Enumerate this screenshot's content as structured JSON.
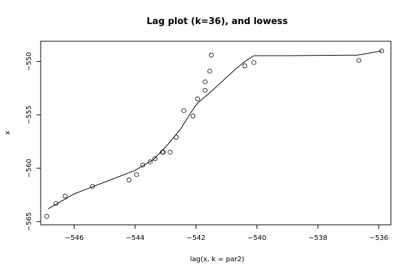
{
  "chart_data": {
    "type": "scatter",
    "title": "Lag plot (k=36), and lowess",
    "xlabel": "lag(x, k = par2)",
    "ylabel": "x",
    "xlim": [
      -547.1,
      -535.6
    ],
    "ylim": [
      -565.3,
      -548.1
    ],
    "x_ticks": [
      -546,
      -544,
      -542,
      -540,
      -538,
      -536
    ],
    "y_ticks": [
      -565,
      -560,
      -555,
      -550
    ],
    "x_tick_labels": [
      "−546",
      "−544",
      "−542",
      "−540",
      "−538",
      "−536"
    ],
    "y_tick_labels": [
      "−565",
      "−560",
      "−555",
      "−550"
    ],
    "grid": false,
    "series": [
      {
        "kind": "points",
        "points": [
          [
            -546.9,
            -564.5
          ],
          [
            -546.6,
            -563.3
          ],
          [
            -546.3,
            -562.6
          ],
          [
            -545.4,
            -561.7
          ],
          [
            -544.2,
            -561.1
          ],
          [
            -543.95,
            -560.6
          ],
          [
            -543.75,
            -559.7
          ],
          [
            -543.5,
            -559.4
          ],
          [
            -543.35,
            -559.1
          ],
          [
            -543.1,
            -558.5
          ],
          [
            -543.08,
            -558.5
          ],
          [
            -542.85,
            -558.5
          ],
          [
            -542.65,
            -557.1
          ],
          [
            -542.4,
            -554.6
          ],
          [
            -542.1,
            -555.1
          ],
          [
            -541.95,
            -553.5
          ],
          [
            -541.7,
            -552.7
          ],
          [
            -541.7,
            -551.9
          ],
          [
            -541.55,
            -550.9
          ],
          [
            -541.5,
            -549.4
          ],
          [
            -540.4,
            -550.4
          ],
          [
            -540.1,
            -550.1
          ],
          [
            -536.65,
            -549.9
          ],
          [
            -535.9,
            -549.0
          ]
        ]
      },
      {
        "kind": "lowess-line",
        "points": [
          [
            -546.85,
            -563.8
          ],
          [
            -546.0,
            -562.4
          ],
          [
            -545.0,
            -561.3
          ],
          [
            -544.0,
            -560.2
          ],
          [
            -543.4,
            -559.2
          ],
          [
            -542.9,
            -557.7
          ],
          [
            -542.5,
            -556.3
          ],
          [
            -542.2,
            -554.9
          ],
          [
            -541.95,
            -553.9
          ],
          [
            -541.5,
            -552.8
          ],
          [
            -540.7,
            -550.7
          ],
          [
            -540.35,
            -549.9
          ],
          [
            -540.1,
            -549.45
          ],
          [
            -539.0,
            -549.45
          ],
          [
            -536.7,
            -549.4
          ],
          [
            -535.9,
            -549.0
          ]
        ]
      }
    ]
  }
}
